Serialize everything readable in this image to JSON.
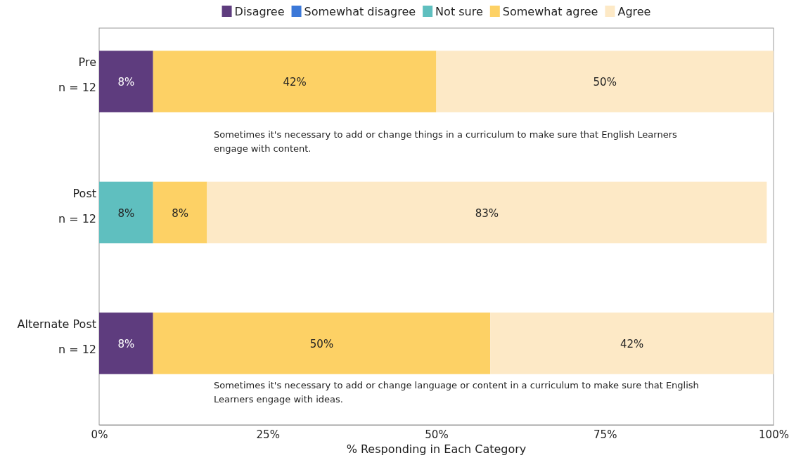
{
  "chart_data": {
    "type": "bar",
    "orientation": "horizontal",
    "stacked": true,
    "categories": [
      "Pre\nn = 12",
      "Post\nn = 12",
      "Alternate Post\nn = 12"
    ],
    "series": [
      {
        "name": "Disagree",
        "color": "#5e3c7e",
        "values": [
          8,
          0,
          8
        ],
        "value_labels": [
          "8%",
          null,
          "8%"
        ]
      },
      {
        "name": "Somewhat disagree",
        "color": "#3b78d8",
        "values": [
          0,
          0,
          0
        ],
        "value_labels": [
          null,
          null,
          null
        ]
      },
      {
        "name": "Not sure",
        "color": "#5fbfbf",
        "values": [
          0,
          8,
          0
        ],
        "value_labels": [
          null,
          "8%",
          null
        ]
      },
      {
        "name": "Somewhat agree",
        "color": "#fdd165",
        "values": [
          42,
          8,
          50
        ],
        "value_labels": [
          "42%",
          "8%",
          "50%"
        ]
      },
      {
        "name": "Agree",
        "color": "#fde9c6",
        "values": [
          50,
          83,
          42
        ],
        "value_labels": [
          "50%",
          "83%",
          "42%"
        ]
      }
    ],
    "xlim": [
      0,
      100
    ],
    "xticks": [
      {
        "value": 0,
        "label": "0%"
      },
      {
        "value": 25,
        "label": "25%"
      },
      {
        "value": 50,
        "label": "50%"
      },
      {
        "value": 75,
        "label": "75%"
      },
      {
        "value": 100,
        "label": "100%"
      }
    ],
    "xlabel": "% Responding in Each Category",
    "legend": "top",
    "annotations": [
      "Sometimes it's necessary to add or change things in a curriculum to make sure that English Learners engage with content.",
      "Sometimes it's necessary to add or change language or content in a curriculum to make sure that English Learners engage with ideas."
    ]
  }
}
